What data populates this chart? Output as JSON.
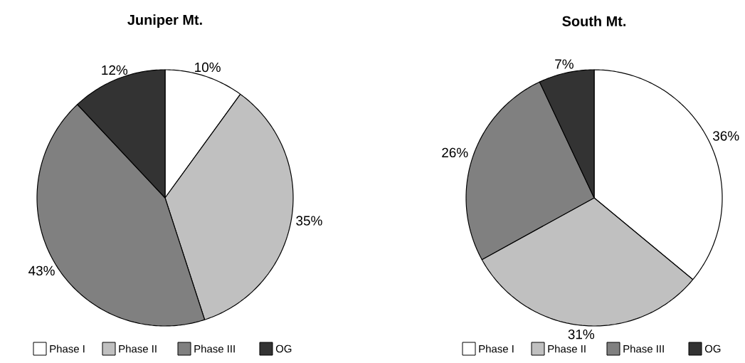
{
  "chart_data": [
    {
      "type": "pie",
      "title": "Juniper Mt.",
      "categories": [
        "Phase I",
        "Phase II",
        "Phase III",
        "OG"
      ],
      "values": [
        10,
        35,
        43,
        12
      ],
      "value_labels": [
        "10%",
        "35%",
        "43%",
        "12%"
      ],
      "colors": [
        "#ffffff",
        "#c0c0c0",
        "#808080",
        "#333333"
      ],
      "legend": "bottom"
    },
    {
      "type": "pie",
      "title": "South Mt.",
      "categories": [
        "Phase I",
        "Phase II",
        "Phase III",
        "OG"
      ],
      "values": [
        36,
        31,
        26,
        7
      ],
      "value_labels": [
        "36%",
        "31%",
        "26%",
        "7%"
      ],
      "colors": [
        "#ffffff",
        "#c0c0c0",
        "#808080",
        "#333333"
      ],
      "legend": "bottom"
    }
  ]
}
